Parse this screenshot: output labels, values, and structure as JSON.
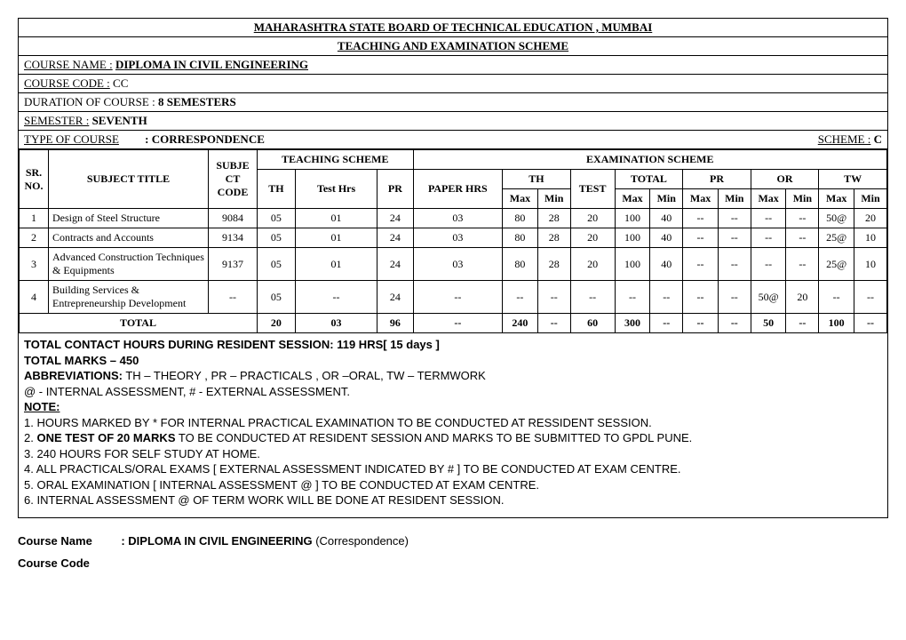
{
  "page": {
    "board_title": "MAHARASHTRA STATE BOARD OF TECHNICAL EDUCATION , MUMBAI",
    "scheme_title": "TEACHING AND EXAMINATION SCHEME",
    "course_name_label": "COURSE NAME :",
    "course_name_value": "DIPLOMA IN CIVIL ENGINEERING",
    "course_code_label": "COURSE CODE :",
    "course_code_value": "CC",
    "duration_label": "DURATION OF COURSE :",
    "duration_value": "8 SEMESTERS",
    "semester_label": "SEMESTER :",
    "semester_value": "SEVENTH",
    "type_label": "TYPE OF COURSE",
    "type_value": ": CORRESPONDENCE",
    "scheme_label": "SCHEME :",
    "scheme_value": "C"
  },
  "headers": {
    "sr": "SR. NO.",
    "subject": "SUBJECT TITLE",
    "subcode": "SUBJE CT CODE",
    "teaching": "TEACHING SCHEME",
    "exam": "EXAMINATION SCHEME",
    "th": "TH",
    "testhrs": "Test Hrs",
    "pr": "PR",
    "paperhrs": "PAPER HRS",
    "THgrp": "TH",
    "TOTALgrp": "TOTAL",
    "PRgrp": "PR",
    "ORgrp": "OR",
    "TWgrp": "TW",
    "max": "Max",
    "min": "Min",
    "test": "TEST"
  },
  "rows": [
    {
      "sr": "1",
      "subject": "Design of Steel Structure",
      "code": "9084",
      "th": "05",
      "testhrs": "01",
      "pr": "24",
      "paper": "03",
      "thmax": "80",
      "thmin": "28",
      "test": "20",
      "totmax": "100",
      "totmin": "40",
      "prmax": "--",
      "prmin": "--",
      "ormax": "--",
      "ormin": "--",
      "twmax": "50@",
      "twmin": "20"
    },
    {
      "sr": "2",
      "subject": "Contracts and Accounts",
      "code": "9134",
      "th": "05",
      "testhrs": "01",
      "pr": "24",
      "paper": "03",
      "thmax": "80",
      "thmin": "28",
      "test": "20",
      "totmax": "100",
      "totmin": "40",
      "prmax": "--",
      "prmin": "--",
      "ormax": "--",
      "ormin": "--",
      "twmax": "25@",
      "twmin": "10"
    },
    {
      "sr": "3",
      "subject": "Advanced Construction Techniques & Equipments",
      "code": "9137",
      "th": "05",
      "testhrs": "01",
      "pr": "24",
      "paper": "03",
      "thmax": "80",
      "thmin": "28",
      "test": "20",
      "totmax": "100",
      "totmin": "40",
      "prmax": "--",
      "prmin": "--",
      "ormax": "--",
      "ormin": "--",
      "twmax": "25@",
      "twmin": "10"
    },
    {
      "sr": "4",
      "subject": "Building Services & Entrepreneurship Development",
      "code": "--",
      "th": "05",
      "testhrs": "--",
      "pr": "24",
      "paper": "--",
      "thmax": "--",
      "thmin": "--",
      "test": "--",
      "totmax": "--",
      "totmin": "--",
      "prmax": "--",
      "prmin": "--",
      "ormax": "50@",
      "ormin": "20",
      "twmax": "--",
      "twmin": "--"
    }
  ],
  "total": {
    "label": "TOTAL",
    "th": "20",
    "testhrs": "03",
    "pr": "96",
    "paper": "--",
    "thmax": "240",
    "thmin": "--",
    "test": "60",
    "totmax": "300",
    "totmin": "--",
    "prmax": "--",
    "prmin": "--",
    "ormax": "50",
    "ormin": "--",
    "twmax": "100",
    "twmin": "--"
  },
  "notes": {
    "contact": "TOTAL CONTACT HOURS DURING RESIDENT SESSION:  119 HRS[ 15 days ]",
    "marks": "TOTAL MARKS – 450",
    "abbr_label": "ABBREVIATIONS:",
    "abbr_text": " TH – THEORY ,  PR – PRACTICALS , OR –ORAL, TW – TERMWORK",
    "abbr_line2": "@ - INTERNAL ASSESSMENT,    # - EXTERNAL ASSESSMENT.",
    "note_label": "NOTE:",
    "n1": "1. HOURS MARKED BY * FOR INTERNAL PRACTICAL EXAMINATION TO BE CONDUCTED AT RESSIDENT SESSION.",
    "n2a": "2. ",
    "n2b": "ONE TEST OF 20 MARKS",
    "n2c": " TO BE CONDUCTED AT RESIDENT SESSION AND MARKS TO BE SUBMITTED TO GPDL PUNE.",
    "n3": "3. 240 HOURS FOR SELF STUDY AT HOME.",
    "n4": "4. ALL PRACTICALS/ORAL EXAMS [ EXTERNAL ASSESSMENT INDICATED BY # ] TO BE CONDUCTED AT EXAM CENTRE.",
    "n5": "5. ORAL EXAMINATION [ INTERNAL ASSESSMENT @ ] TO BE CONDUCTED AT EXAM CENTRE.",
    "n6": "6. INTERNAL ASSESSMENT @ OF TERM WORK WILL BE DONE AT RESIDENT SESSION."
  },
  "below": {
    "cn_label": "Course Name",
    "cn_value": ": DIPLOMA IN CIVIL ENGINEERING ",
    "cn_paren": "(Correspondence)",
    "cc_label": "Course Code"
  }
}
